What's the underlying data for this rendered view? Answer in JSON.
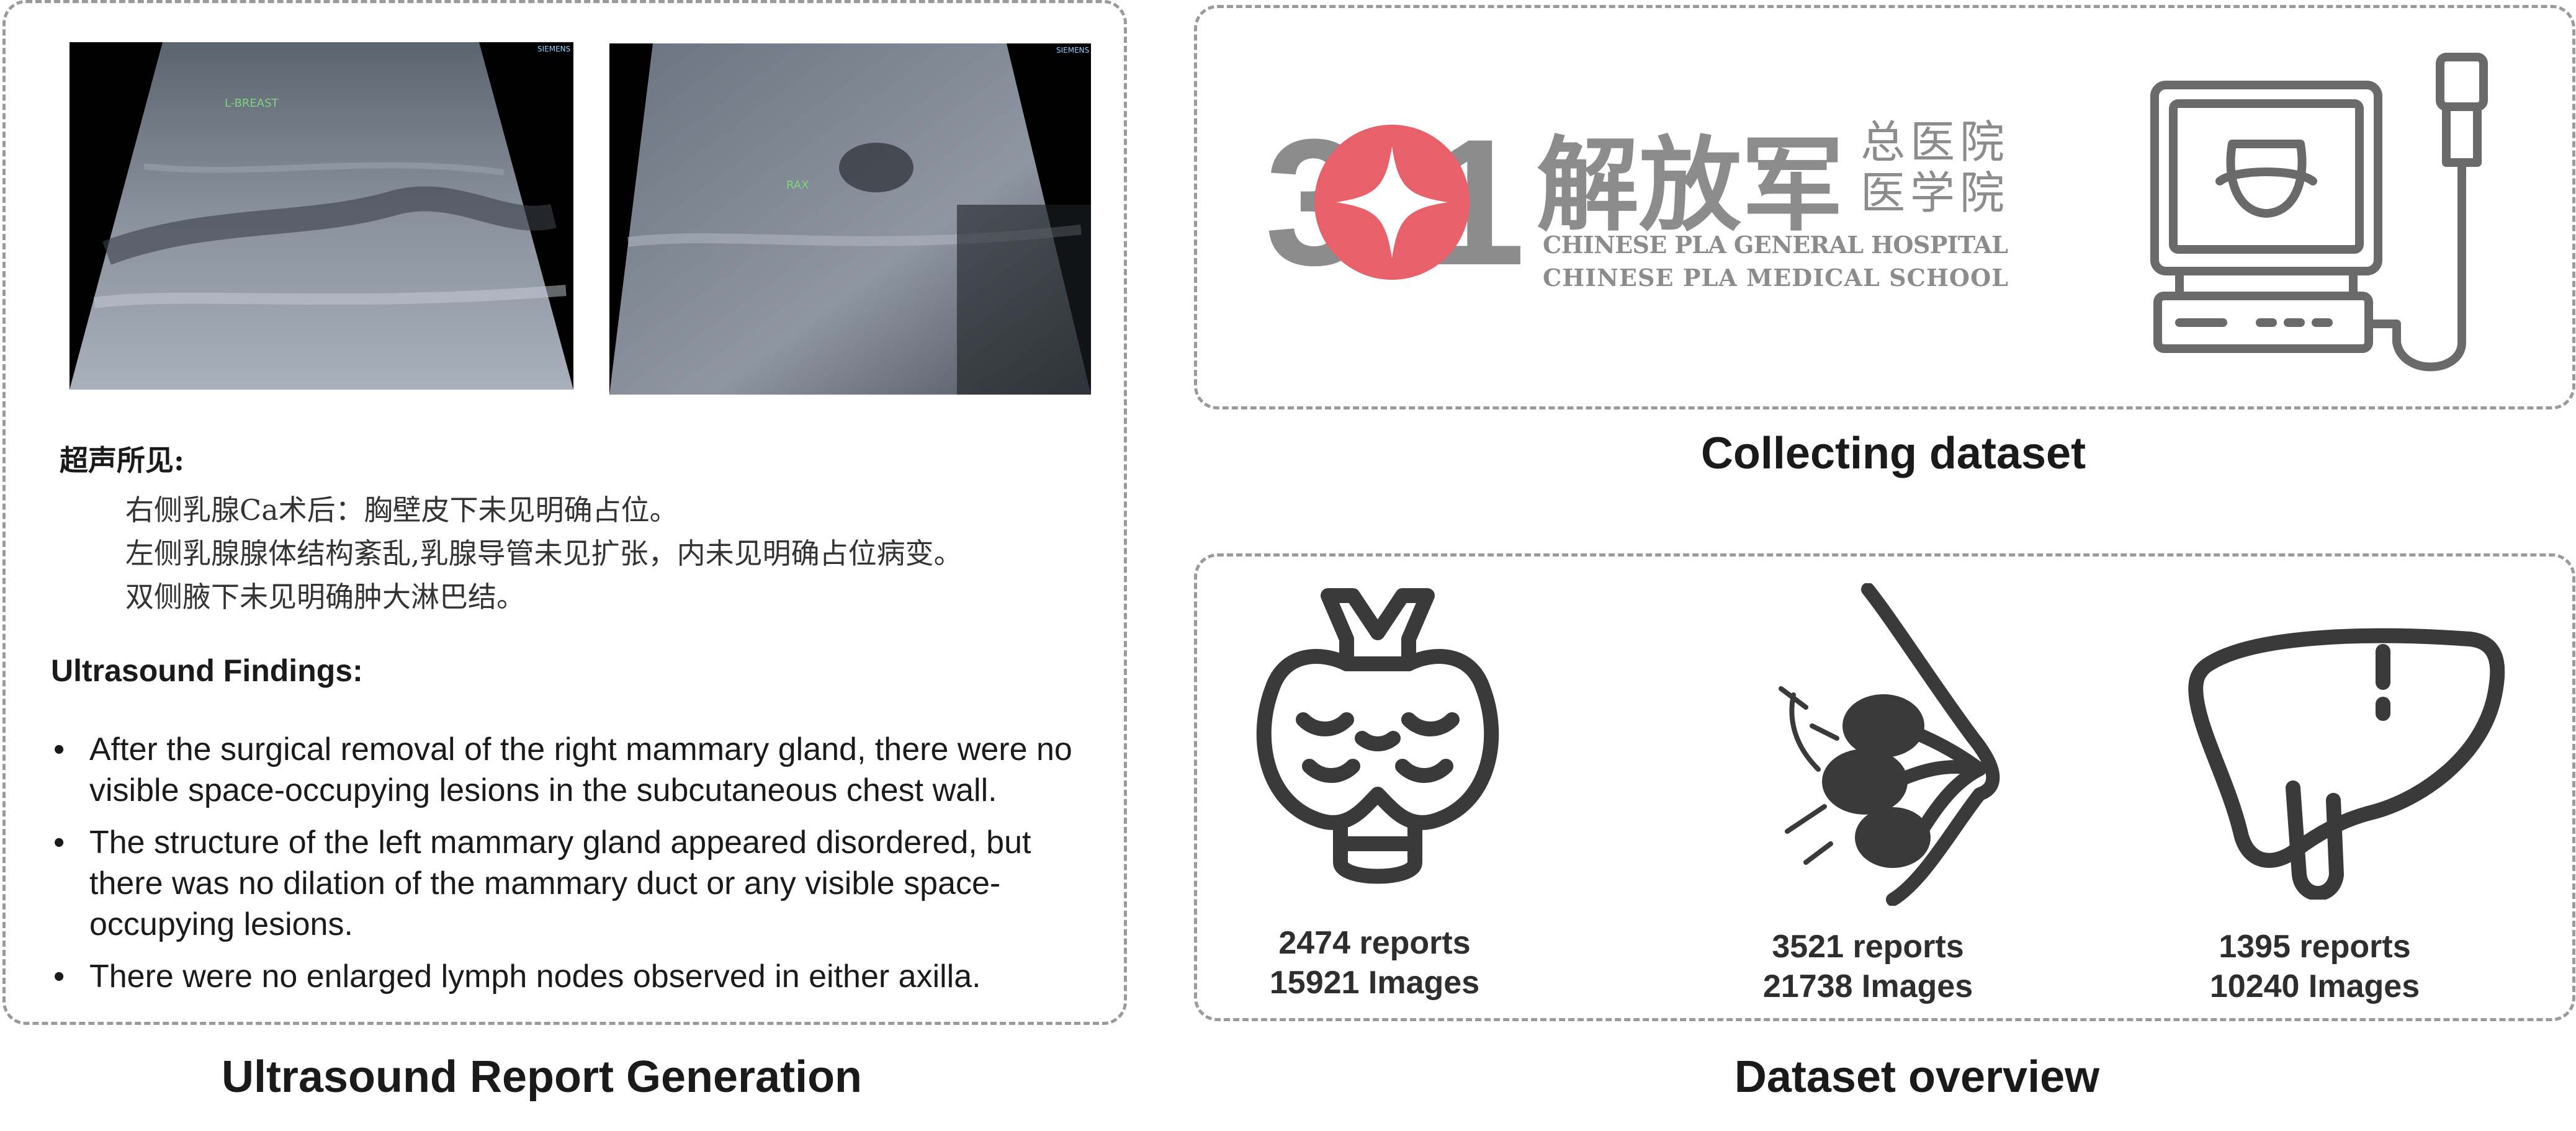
{
  "captions": {
    "report_generation": "Ultrasound Report Generation",
    "collecting": "Collecting dataset",
    "overview": "Dataset overview"
  },
  "ultrasound_images": [
    {
      "label": "L-BREAST",
      "vendor": "SIEMENS"
    },
    {
      "label": "RAX",
      "vendor": "SIEMENS"
    }
  ],
  "report_cn": {
    "title": "超声所见:",
    "lines": [
      "右侧乳腺Ca术后：胸壁皮下未见明确占位。",
      "左侧乳腺腺体结构紊乱,乳腺导管未见扩张，内未见明确占位病变。",
      "双侧腋下未见明确肿大淋巴结。"
    ]
  },
  "report_en": {
    "title": "Ultrasound Findings:",
    "bullets": [
      "After the surgical removal of the right mammary gland, there were no visible space-occupying lesions in the subcutaneous chest wall.",
      "The structure of the left mammary gland appeared disordered, but there was no dilation of the mammary duct or any visible space-occupying lesions.",
      "There were no enlarged lymph nodes observed in either axilla."
    ]
  },
  "hospital": {
    "logo_number": "301",
    "name_cn": "解放军",
    "sub_cn_1": "总医院",
    "sub_cn_2": "医学院",
    "name_en_1": "CHINESE PLA GENERAL HOSPITAL",
    "name_en_2": "CHINESE PLA MEDICAL SCHOOL"
  },
  "icons": {
    "machine": "ultrasound-machine-icon",
    "thyroid": "thyroid-icon",
    "breast": "breast-icon",
    "liver": "liver-icon"
  },
  "datasets": [
    {
      "organ": "thyroid",
      "reports": "2474 reports",
      "images": "15921 Images"
    },
    {
      "organ": "breast",
      "reports": "3521 reports",
      "images": "21738 Images"
    },
    {
      "organ": "liver",
      "reports": "1395 reports",
      "images": "10240 Images"
    }
  ],
  "colors": {
    "border": "#9a9a9a",
    "icon": "#3a3a3a",
    "logo_red": "#e8606a",
    "logo_grey": "#8c8c8c"
  }
}
